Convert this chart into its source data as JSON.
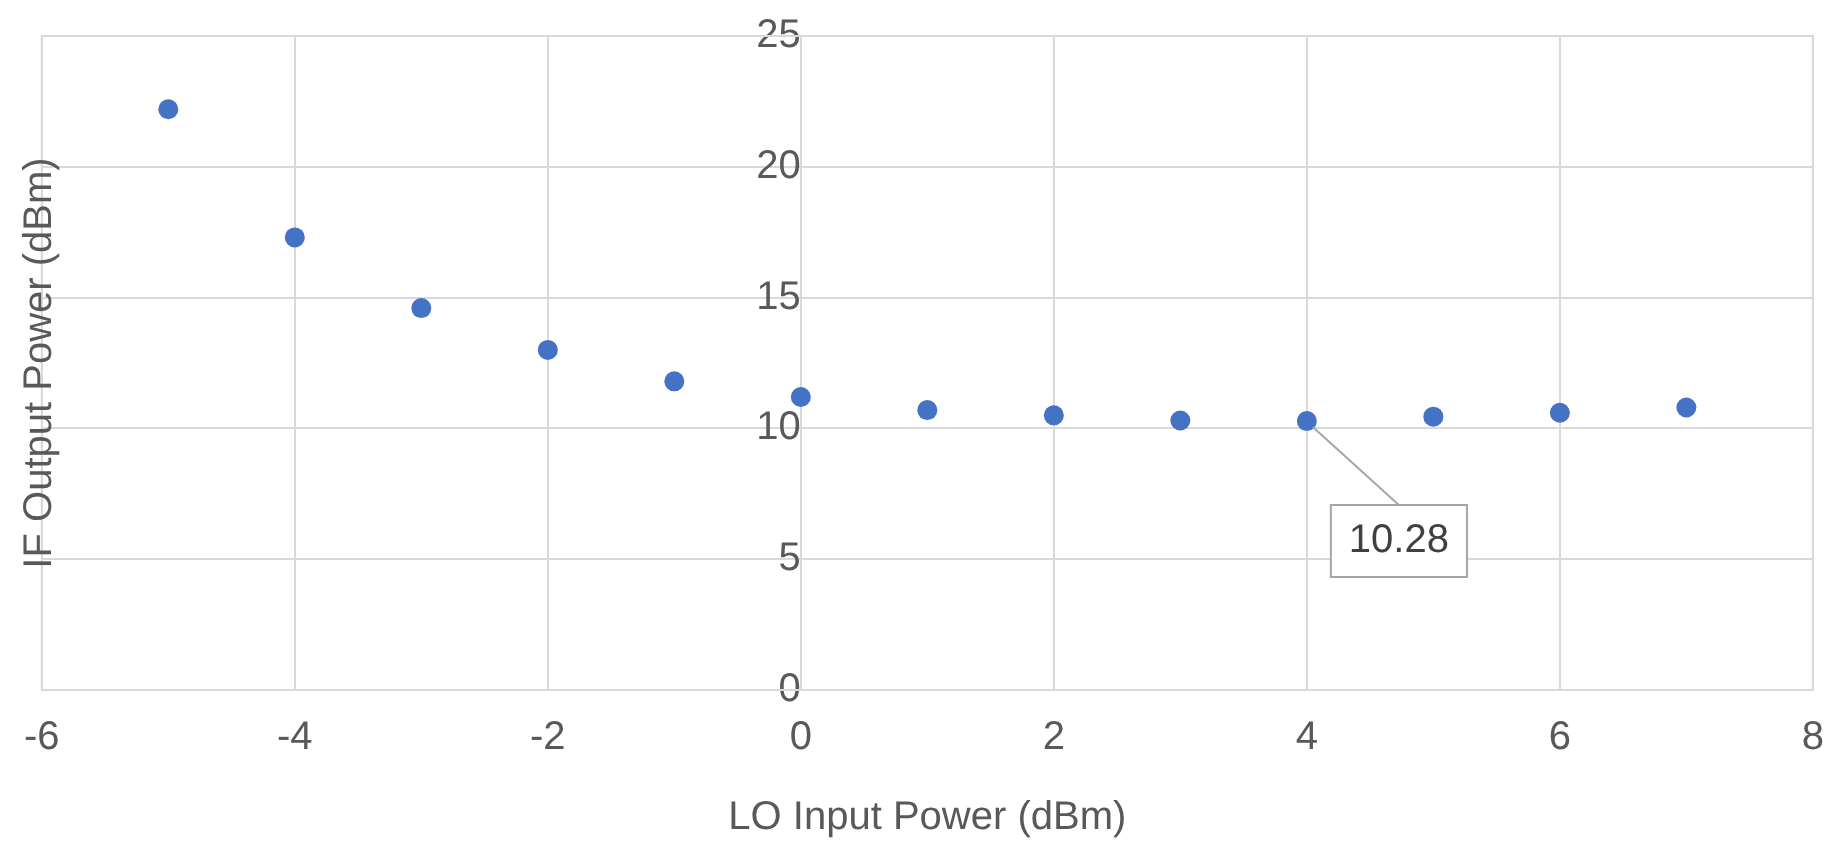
{
  "chart_data": {
    "type": "scatter",
    "xlabel": "LO Input Power (dBm)",
    "ylabel": "IF Output Power (dBm)",
    "x": [
      -5,
      -4,
      -3,
      -2,
      -1,
      0,
      1,
      2,
      3,
      4,
      5,
      6,
      7
    ],
    "series": [
      {
        "color": "#4472c4",
        "values": [
          22.2,
          17.3,
          14.6,
          13.0,
          11.8,
          11.2,
          10.7,
          10.5,
          10.3,
          10.28,
          10.45,
          10.6,
          10.8
        ]
      }
    ],
    "xlim": [
      -6,
      8
    ],
    "xticks": [
      -6,
      -4,
      -2,
      0,
      2,
      4,
      6,
      8
    ],
    "ylim": [
      0,
      25
    ],
    "yticks": [
      0,
      5,
      10,
      15,
      20,
      25
    ],
    "grid": true,
    "legend": false,
    "marker": "circle",
    "annotations": [
      {
        "text": "10.28",
        "x": 4,
        "y": 10.28
      }
    ]
  }
}
